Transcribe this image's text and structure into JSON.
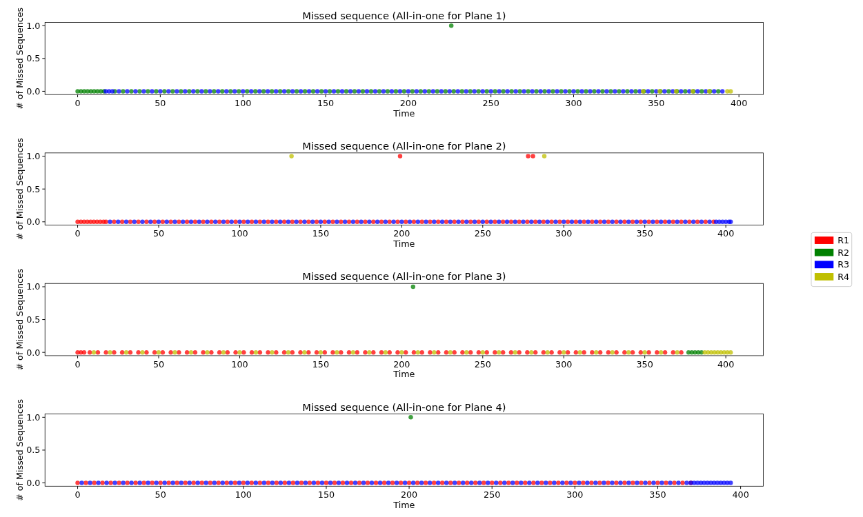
{
  "chart_data": [
    {
      "type": "scatter",
      "title": "Missed sequence (All-in-one for Plane 1)",
      "xlabel": "Time",
      "ylabel": "# of Missed Sequences",
      "xlim": [
        -19.75,
        414.75
      ],
      "ylim": [
        -0.05,
        1.05
      ],
      "xticks": [
        0,
        50,
        100,
        150,
        200,
        250,
        300,
        350,
        400
      ],
      "yticks": [
        {
          "value": 0,
          "label": "0.0"
        },
        {
          "value": 0.5,
          "label": "0.5"
        },
        {
          "value": 1,
          "label": "1.0"
        }
      ],
      "marker": "circle",
      "legend": false,
      "series": [
        {
          "color": "#008000",
          "x": [
            0,
            2,
            4,
            6,
            8,
            10,
            12,
            14,
            16,
            22.5,
            27.5,
            32.5,
            37.5,
            42.5,
            47.5,
            52.5,
            57.5,
            62.5,
            67.5,
            72.5,
            77.5,
            82.5,
            87.5,
            92.5,
            97.5,
            102.5,
            107.5,
            112.5,
            117.5,
            122.5,
            127.5,
            132.5,
            137.5,
            142.5,
            147.5,
            152.5,
            157.5,
            162.5,
            167.5,
            172.5,
            177.5,
            182.5,
            187.5,
            192.5,
            197.5,
            202.5,
            207.5,
            212.5,
            217.5,
            222.5,
            227.5,
            232.5,
            237.5,
            242.5,
            247.5,
            252.5,
            257.5,
            262.5,
            267.5,
            272.5,
            277.5,
            282.5,
            287.5,
            292.5,
            297.5,
            302.5,
            307.5,
            312.5,
            317.5,
            322.5,
            327.5,
            332.5,
            337.5,
            342.5,
            347.5,
            352.5,
            357.5,
            362.5,
            367.5,
            372.5,
            377.5,
            382.5,
            387.5,
            226
          ],
          "values": [
            0,
            0,
            0,
            0,
            0,
            0,
            0,
            0,
            0,
            0,
            0,
            0,
            0,
            0,
            0,
            0,
            0,
            0,
            0,
            0,
            0,
            0,
            0,
            0,
            0,
            0,
            0,
            0,
            0,
            0,
            0,
            0,
            0,
            0,
            0,
            0,
            0,
            0,
            0,
            0,
            0,
            0,
            0,
            0,
            0,
            0,
            0,
            0,
            0,
            0,
            0,
            0,
            0,
            0,
            0,
            0,
            0,
            0,
            0,
            0,
            0,
            0,
            0,
            0,
            0,
            0,
            0,
            0,
            0,
            0,
            0,
            0,
            0,
            0,
            0,
            0,
            0,
            0,
            0,
            0,
            0,
            0,
            0,
            1
          ]
        },
        {
          "color": "#0000ff",
          "x": [
            17,
            19,
            21,
            25,
            30,
            35,
            40,
            45,
            50,
            55,
            60,
            65,
            70,
            75,
            80,
            85,
            90,
            95,
            100,
            105,
            110,
            115,
            120,
            125,
            130,
            135,
            140,
            145,
            150,
            155,
            160,
            165,
            170,
            175,
            180,
            185,
            190,
            195,
            200,
            205,
            210,
            215,
            220,
            225,
            230,
            235,
            240,
            245,
            250,
            255,
            260,
            265,
            270,
            275,
            280,
            285,
            290,
            295,
            300,
            305,
            310,
            315,
            320,
            325,
            330,
            335,
            340,
            345,
            350,
            355,
            360,
            365,
            370,
            375,
            380,
            385,
            390
          ],
          "values": [
            0,
            0,
            0,
            0,
            0,
            0,
            0,
            0,
            0,
            0,
            0,
            0,
            0,
            0,
            0,
            0,
            0,
            0,
            0,
            0,
            0,
            0,
            0,
            0,
            0,
            0,
            0,
            0,
            0,
            0,
            0,
            0,
            0,
            0,
            0,
            0,
            0,
            0,
            0,
            0,
            0,
            0,
            0,
            0,
            0,
            0,
            0,
            0,
            0,
            0,
            0,
            0,
            0,
            0,
            0,
            0,
            0,
            0,
            0,
            0,
            0,
            0,
            0,
            0,
            0,
            0,
            0,
            0,
            0,
            0,
            0,
            0,
            0,
            0,
            0,
            0,
            0
          ]
        },
        {
          "color": "#bfbf00",
          "x": [
            342,
            352,
            362,
            372,
            382,
            393,
            395
          ],
          "values": [
            0,
            0,
            0,
            0,
            0,
            0,
            0
          ]
        }
      ]
    },
    {
      "type": "scatter",
      "title": "Missed sequence (All-in-one for Plane 2)",
      "xlabel": "Time",
      "ylabel": "# of Missed Sequences",
      "xlim": [
        -20.15,
        423.15
      ],
      "ylim": [
        -0.05,
        1.05
      ],
      "xticks": [
        0,
        50,
        100,
        150,
        200,
        250,
        300,
        350,
        400
      ],
      "yticks": [
        {
          "value": 0,
          "label": "0.0"
        },
        {
          "value": 0.5,
          "label": "0.5"
        },
        {
          "value": 1,
          "label": "1.0"
        }
      ],
      "marker": "circle",
      "legend": "right",
      "series": [
        {
          "name": "R1",
          "color": "#ff0000",
          "x": [
            0,
            2,
            4,
            6,
            8,
            10,
            12,
            14,
            16,
            17.5,
            22.5,
            27.5,
            32.5,
            37.5,
            42.5,
            47.5,
            52.5,
            57.5,
            62.5,
            67.5,
            72.5,
            77.5,
            82.5,
            87.5,
            92.5,
            97.5,
            102.5,
            107.5,
            112.5,
            117.5,
            122.5,
            127.5,
            132.5,
            137.5,
            142.5,
            147.5,
            152.5,
            157.5,
            162.5,
            167.5,
            172.5,
            177.5,
            182.5,
            187.5,
            192.5,
            197.5,
            202.5,
            207.5,
            212.5,
            217.5,
            222.5,
            227.5,
            232.5,
            237.5,
            242.5,
            247.5,
            252.5,
            257.5,
            262.5,
            267.5,
            272.5,
            277.5,
            282.5,
            287.5,
            292.5,
            297.5,
            302.5,
            307.5,
            312.5,
            317.5,
            322.5,
            327.5,
            332.5,
            337.5,
            342.5,
            347.5,
            352.5,
            357.5,
            362.5,
            367.5,
            372.5,
            377.5,
            382.5,
            387.5,
            392.5,
            199,
            278,
            281
          ],
          "values": [
            0,
            0,
            0,
            0,
            0,
            0,
            0,
            0,
            0,
            0,
            0,
            0,
            0,
            0,
            0,
            0,
            0,
            0,
            0,
            0,
            0,
            0,
            0,
            0,
            0,
            0,
            0,
            0,
            0,
            0,
            0,
            0,
            0,
            0,
            0,
            0,
            0,
            0,
            0,
            0,
            0,
            0,
            0,
            0,
            0,
            0,
            0,
            0,
            0,
            0,
            0,
            0,
            0,
            0,
            0,
            0,
            0,
            0,
            0,
            0,
            0,
            0,
            0,
            0,
            0,
            0,
            0,
            0,
            0,
            0,
            0,
            0,
            0,
            0,
            0,
            0,
            0,
            0,
            0,
            0,
            0,
            0,
            0,
            0,
            0,
            1,
            1,
            1
          ]
        },
        {
          "name": "R2",
          "color": "#008000"
        },
        {
          "name": "R3",
          "color": "#0000ff",
          "x": [
            20,
            25,
            30,
            35,
            40,
            45,
            50,
            55,
            60,
            65,
            70,
            75,
            80,
            85,
            90,
            95,
            100,
            105,
            110,
            115,
            120,
            125,
            130,
            135,
            140,
            145,
            150,
            155,
            160,
            165,
            170,
            175,
            180,
            185,
            190,
            195,
            200,
            205,
            210,
            215,
            220,
            225,
            230,
            235,
            240,
            245,
            250,
            255,
            260,
            265,
            270,
            275,
            280,
            285,
            290,
            295,
            300,
            305,
            310,
            315,
            320,
            325,
            330,
            335,
            340,
            345,
            350,
            355,
            360,
            365,
            370,
            375,
            380,
            385,
            390,
            394,
            396,
            398,
            400,
            402,
            403
          ],
          "values": [
            0,
            0,
            0,
            0,
            0,
            0,
            0,
            0,
            0,
            0,
            0,
            0,
            0,
            0,
            0,
            0,
            0,
            0,
            0,
            0,
            0,
            0,
            0,
            0,
            0,
            0,
            0,
            0,
            0,
            0,
            0,
            0,
            0,
            0,
            0,
            0,
            0,
            0,
            0,
            0,
            0,
            0,
            0,
            0,
            0,
            0,
            0,
            0,
            0,
            0,
            0,
            0,
            0,
            0,
            0,
            0,
            0,
            0,
            0,
            0,
            0,
            0,
            0,
            0,
            0,
            0,
            0,
            0,
            0,
            0,
            0,
            0,
            0,
            0,
            0,
            0,
            0,
            0,
            0,
            0,
            0
          ]
        },
        {
          "name": "R4",
          "color": "#bfbf00",
          "x": [
            132,
            288
          ],
          "values": [
            1,
            1
          ]
        }
      ]
    },
    {
      "type": "scatter",
      "title": "Missed sequence (All-in-one for Plane 3)",
      "xlabel": "Time",
      "ylabel": "# of Missed Sequences",
      "xlim": [
        -20.15,
        423.15
      ],
      "ylim": [
        -0.05,
        1.05
      ],
      "xticks": [
        0,
        50,
        100,
        150,
        200,
        250,
        300,
        350,
        400
      ],
      "yticks": [
        {
          "value": 0,
          "label": "0.0"
        },
        {
          "value": 0.5,
          "label": "0.5"
        },
        {
          "value": 1,
          "label": "1.0"
        }
      ],
      "marker": "circle",
      "legend": false,
      "series": [
        {
          "color": "#ff0000",
          "x": [
            0,
            2,
            4,
            7.5,
            12.5,
            17.5,
            22.5,
            27.5,
            32.5,
            37.5,
            42.5,
            47.5,
            52.5,
            57.5,
            62.5,
            67.5,
            72.5,
            77.5,
            82.5,
            87.5,
            92.5,
            97.5,
            102.5,
            107.5,
            112.5,
            117.5,
            122.5,
            127.5,
            132.5,
            137.5,
            142.5,
            147.5,
            152.5,
            157.5,
            162.5,
            167.5,
            172.5,
            177.5,
            182.5,
            187.5,
            192.5,
            197.5,
            202.5,
            207.5,
            212.5,
            217.5,
            222.5,
            227.5,
            232.5,
            237.5,
            242.5,
            247.5,
            252.5,
            257.5,
            262.5,
            267.5,
            272.5,
            277.5,
            282.5,
            287.5,
            292.5,
            297.5,
            302.5,
            307.5,
            312.5,
            317.5,
            322.5,
            327.5,
            332.5,
            337.5,
            342.5,
            347.5,
            352.5,
            357.5,
            362.5,
            367.5,
            372.5
          ],
          "values": [
            0,
            0,
            0,
            0,
            0,
            0,
            0,
            0,
            0,
            0,
            0,
            0,
            0,
            0,
            0,
            0,
            0,
            0,
            0,
            0,
            0,
            0,
            0,
            0,
            0,
            0,
            0,
            0,
            0,
            0,
            0,
            0,
            0,
            0,
            0,
            0,
            0,
            0,
            0,
            0,
            0,
            0,
            0,
            0,
            0,
            0,
            0,
            0,
            0,
            0,
            0,
            0,
            0,
            0,
            0,
            0,
            0,
            0,
            0,
            0,
            0,
            0,
            0,
            0,
            0,
            0,
            0,
            0,
            0,
            0,
            0,
            0,
            0,
            0,
            0,
            0,
            0
          ]
        },
        {
          "color": "#008000",
          "x": [
            377,
            379,
            381,
            383,
            385,
            207
          ],
          "values": [
            0,
            0,
            0,
            0,
            0,
            1
          ]
        },
        {
          "color": "#bfbf00",
          "x": [
            10,
            20,
            30,
            40,
            50,
            60,
            70,
            80,
            90,
            100,
            110,
            120,
            130,
            140,
            150,
            160,
            170,
            180,
            190,
            200,
            210,
            220,
            230,
            240,
            250,
            260,
            270,
            280,
            290,
            300,
            310,
            320,
            330,
            340,
            350,
            360,
            370,
            387,
            389,
            391,
            393,
            395,
            397,
            399,
            401,
            403
          ],
          "values": [
            0,
            0,
            0,
            0,
            0,
            0,
            0,
            0,
            0,
            0,
            0,
            0,
            0,
            0,
            0,
            0,
            0,
            0,
            0,
            0,
            0,
            0,
            0,
            0,
            0,
            0,
            0,
            0,
            0,
            0,
            0,
            0,
            0,
            0,
            0,
            0,
            0,
            0,
            0,
            0,
            0,
            0,
            0,
            0,
            0,
            0
          ]
        }
      ]
    },
    {
      "type": "scatter",
      "title": "Missed sequence (All-in-one for Plane 4)",
      "xlabel": "Time",
      "ylabel": "# of Missed Sequences",
      "xlim": [
        -19.7,
        413.7
      ],
      "ylim": [
        -0.05,
        1.05
      ],
      "xticks": [
        0,
        50,
        100,
        150,
        200,
        250,
        300,
        350,
        400
      ],
      "yticks": [
        {
          "value": 0,
          "label": "0.0"
        },
        {
          "value": 0.5,
          "label": "0.5"
        },
        {
          "value": 1,
          "label": "1.0"
        }
      ],
      "marker": "circle",
      "legend": false,
      "series": [
        {
          "color": "#ff0000",
          "x": [
            0,
            5,
            10,
            15,
            20,
            25,
            30,
            35,
            40,
            45,
            50,
            55,
            60,
            65,
            70,
            75,
            80,
            85,
            90,
            95,
            100,
            105,
            110,
            115,
            120,
            125,
            130,
            135,
            140,
            145,
            150,
            155,
            160,
            165,
            170,
            175,
            180,
            185,
            190,
            195,
            200,
            205,
            210,
            215,
            220,
            225,
            230,
            235,
            240,
            245,
            250,
            255,
            260,
            265,
            270,
            275,
            280,
            285,
            290,
            295,
            300,
            305,
            310,
            315,
            320,
            325,
            330,
            335,
            340,
            345,
            350,
            355,
            360,
            365,
            370
          ],
          "values": [
            0,
            0,
            0,
            0,
            0,
            0,
            0,
            0,
            0,
            0,
            0,
            0,
            0,
            0,
            0,
            0,
            0,
            0,
            0,
            0,
            0,
            0,
            0,
            0,
            0,
            0,
            0,
            0,
            0,
            0,
            0,
            0,
            0,
            0,
            0,
            0,
            0,
            0,
            0,
            0,
            0,
            0,
            0,
            0,
            0,
            0,
            0,
            0,
            0,
            0,
            0,
            0,
            0,
            0,
            0,
            0,
            0,
            0,
            0,
            0,
            0,
            0,
            0,
            0,
            0,
            0,
            0,
            0,
            0,
            0,
            0,
            0,
            0,
            0,
            0
          ]
        },
        {
          "color": "#008000",
          "x": [
            201
          ],
          "values": [
            1
          ]
        },
        {
          "color": "#0000ff",
          "x": [
            2.5,
            7.5,
            12.5,
            17.5,
            22.5,
            27.5,
            32.5,
            37.5,
            42.5,
            47.5,
            52.5,
            57.5,
            62.5,
            67.5,
            72.5,
            77.5,
            82.5,
            87.5,
            92.5,
            97.5,
            102.5,
            107.5,
            112.5,
            117.5,
            122.5,
            127.5,
            132.5,
            137.5,
            142.5,
            147.5,
            152.5,
            157.5,
            162.5,
            167.5,
            172.5,
            177.5,
            182.5,
            187.5,
            192.5,
            197.5,
            202.5,
            207.5,
            212.5,
            217.5,
            222.5,
            227.5,
            232.5,
            237.5,
            242.5,
            247.5,
            252.5,
            257.5,
            262.5,
            267.5,
            272.5,
            277.5,
            282.5,
            287.5,
            292.5,
            297.5,
            302.5,
            307.5,
            312.5,
            317.5,
            322.5,
            327.5,
            332.5,
            337.5,
            342.5,
            347.5,
            352.5,
            357.5,
            362.5,
            367.5,
            370,
            372,
            374,
            376,
            378,
            380,
            382,
            384,
            386,
            388,
            390,
            392,
            394
          ],
          "values": [
            0,
            0,
            0,
            0,
            0,
            0,
            0,
            0,
            0,
            0,
            0,
            0,
            0,
            0,
            0,
            0,
            0,
            0,
            0,
            0,
            0,
            0,
            0,
            0,
            0,
            0,
            0,
            0,
            0,
            0,
            0,
            0,
            0,
            0,
            0,
            0,
            0,
            0,
            0,
            0,
            0,
            0,
            0,
            0,
            0,
            0,
            0,
            0,
            0,
            0,
            0,
            0,
            0,
            0,
            0,
            0,
            0,
            0,
            0,
            0,
            0,
            0,
            0,
            0,
            0,
            0,
            0,
            0,
            0,
            0,
            0,
            0,
            0,
            0,
            0,
            0,
            0,
            0,
            0,
            0,
            0,
            0,
            0,
            0,
            0,
            0,
            0
          ]
        }
      ]
    }
  ]
}
